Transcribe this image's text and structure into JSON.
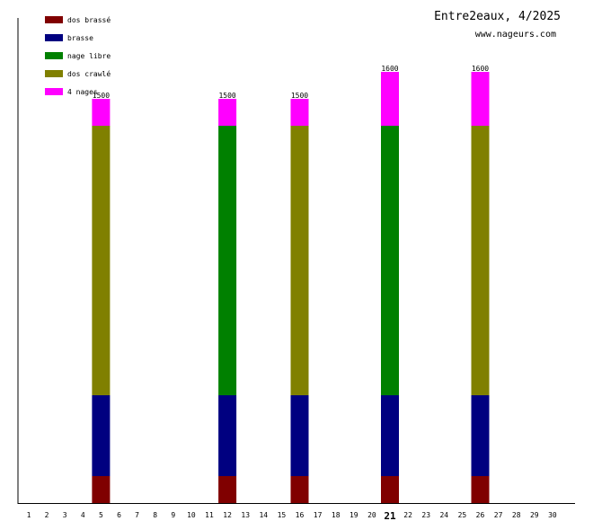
{
  "chart_data": {
    "type": "bar",
    "stacked": true,
    "title": "Entre2eaux, 4/2025",
    "subtitle": "www.nageurs.com",
    "categories": [
      "1",
      "2",
      "3",
      "4",
      "5",
      "6",
      "7",
      "8",
      "9",
      "10",
      "11",
      "12",
      "13",
      "14",
      "15",
      "16",
      "17",
      "18",
      "19",
      "20",
      "21",
      "22",
      "23",
      "24",
      "25",
      "26",
      "27",
      "28",
      "29",
      "30"
    ],
    "highlight_category": "21",
    "ylim": [
      0,
      1800
    ],
    "legend_position": "top-left",
    "series": [
      {
        "name": "dos brassé",
        "color": "#800000",
        "values": [
          0,
          0,
          0,
          0,
          100,
          0,
          0,
          0,
          0,
          0,
          0,
          100,
          0,
          0,
          0,
          100,
          0,
          0,
          0,
          0,
          100,
          0,
          0,
          0,
          0,
          100,
          0,
          0,
          0,
          0
        ]
      },
      {
        "name": "brasse",
        "color": "#000080",
        "values": [
          0,
          0,
          0,
          0,
          300,
          0,
          0,
          0,
          0,
          0,
          0,
          300,
          0,
          0,
          0,
          300,
          0,
          0,
          0,
          0,
          300,
          0,
          0,
          0,
          0,
          300,
          0,
          0,
          0,
          0
        ]
      },
      {
        "name": "nage libre",
        "color": "#008000",
        "values": [
          0,
          0,
          0,
          0,
          0,
          0,
          0,
          0,
          0,
          0,
          0,
          1000,
          0,
          0,
          0,
          0,
          0,
          0,
          0,
          0,
          1000,
          0,
          0,
          0,
          0,
          0,
          0,
          0,
          0,
          0
        ]
      },
      {
        "name": "dos crawlé",
        "color": "#808000",
        "values": [
          0,
          0,
          0,
          0,
          1000,
          0,
          0,
          0,
          0,
          0,
          0,
          0,
          0,
          0,
          0,
          1000,
          0,
          0,
          0,
          0,
          0,
          0,
          0,
          0,
          0,
          1000,
          0,
          0,
          0,
          0
        ]
      },
      {
        "name": "4 nages",
        "color": "#ff00ff",
        "values": [
          0,
          0,
          0,
          0,
          100,
          0,
          0,
          0,
          0,
          0,
          0,
          100,
          0,
          0,
          0,
          100,
          0,
          0,
          0,
          0,
          200,
          0,
          0,
          0,
          0,
          200,
          0,
          0,
          0,
          0
        ]
      }
    ],
    "totals": [
      0,
      0,
      0,
      0,
      1500,
      0,
      0,
      0,
      0,
      0,
      0,
      1500,
      0,
      0,
      0,
      1500,
      0,
      0,
      0,
      0,
      1600,
      0,
      0,
      0,
      0,
      1600,
      0,
      0,
      0,
      0
    ]
  }
}
